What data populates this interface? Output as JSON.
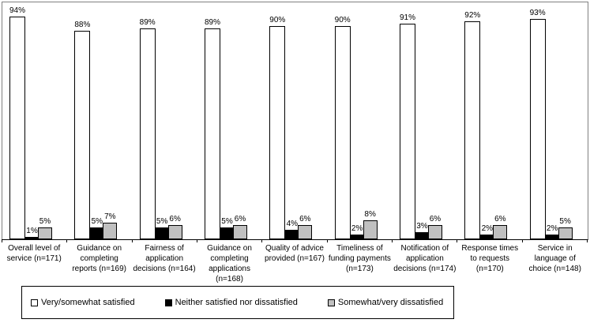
{
  "chart_data": {
    "type": "bar",
    "title": "",
    "xlabel": "",
    "ylabel": "",
    "ylim": [
      0,
      100
    ],
    "grid": false,
    "legend_position": "bottom",
    "value_label_suffix": "%",
    "categories": [
      "Overall level of service (n=171)",
      "Guidance on completing reports (n=169)",
      "Fairness of application decisions (n=164)",
      "Guidance on completing applications (n=168)",
      "Quality of advice provided (n=167)",
      "Timeliness of funding payments (n=173)",
      "Notification of application decisions (n=174)",
      "Response times to requests (n=170)",
      "Service in language of choice (n=148)"
    ],
    "series": [
      {
        "name": "Very/somewhat satisfied",
        "color": "#ffffff",
        "values": [
          94,
          88,
          89,
          89,
          90,
          90,
          91,
          92,
          93
        ]
      },
      {
        "name": "Neither satisfied nor dissatisfied",
        "color": "#000000",
        "values": [
          1,
          5,
          5,
          5,
          4,
          2,
          3,
          2,
          2
        ]
      },
      {
        "name": "Somewhat/very dissatisfied",
        "color": "#c0c0c0",
        "values": [
          5,
          7,
          6,
          6,
          6,
          8,
          6,
          6,
          5
        ]
      }
    ],
    "colors": {
      "plot_border": "#808080",
      "axis_line": "#000000",
      "bar_border": "#000000"
    }
  }
}
